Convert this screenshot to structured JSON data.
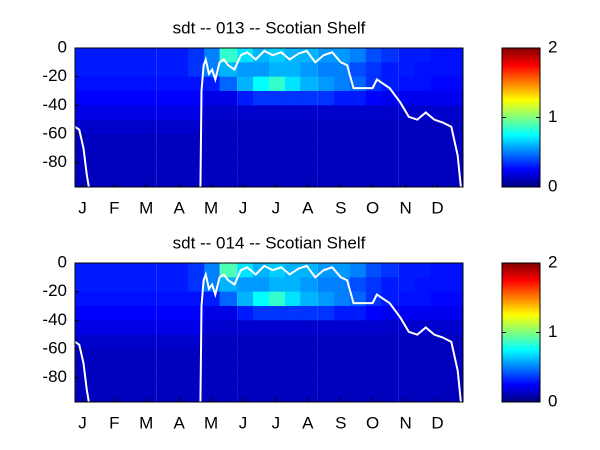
{
  "chart_data": [
    {
      "type": "heatmap",
      "title": "sdt -- 013 -- Scotian Shelf",
      "colormap": "jet",
      "xlim": [
        0,
        365
      ],
      "xticks": [
        {
          "value": 7,
          "label": "J"
        },
        {
          "value": 37,
          "label": "F"
        },
        {
          "value": 67,
          "label": "M"
        },
        {
          "value": 98,
          "label": "A"
        },
        {
          "value": 128,
          "label": "M"
        },
        {
          "value": 158,
          "label": "J"
        },
        {
          "value": 189,
          "label": "J"
        },
        {
          "value": 219,
          "label": "A"
        },
        {
          "value": 250,
          "label": "S"
        },
        {
          "value": 280,
          "label": "O"
        },
        {
          "value": 311,
          "label": "N"
        },
        {
          "value": 341,
          "label": "D"
        }
      ],
      "ylim": [
        -97,
        0
      ],
      "yticks": [
        0,
        -20,
        -40,
        -60,
        -80
      ],
      "clim": [
        0,
        2
      ],
      "cticks": [
        0,
        1,
        2
      ],
      "x": [
        8,
        23,
        38,
        53,
        68,
        84,
        99,
        114,
        129,
        144,
        160,
        175,
        190,
        205,
        220,
        236,
        251,
        266,
        281,
        296,
        312,
        327,
        342,
        357
      ],
      "y": [
        -5,
        -15,
        -25,
        -35,
        -45,
        -55,
        -65,
        -75,
        -85,
        -95
      ],
      "z": [
        [
          0.3,
          0.3,
          0.3,
          0.3,
          0.3,
          0.3,
          0.3,
          0.35,
          0.5,
          0.85,
          0.7,
          0.6,
          0.65,
          0.6,
          0.6,
          0.55,
          0.55,
          0.5,
          0.4,
          0.35,
          0.3,
          0.3,
          0.28,
          0.28
        ],
        [
          0.3,
          0.3,
          0.3,
          0.3,
          0.3,
          0.3,
          0.3,
          0.35,
          0.5,
          0.6,
          0.55,
          0.55,
          0.6,
          0.6,
          0.55,
          0.5,
          0.5,
          0.4,
          0.35,
          0.3,
          0.3,
          0.28,
          0.28,
          0.28
        ],
        [
          0.28,
          0.28,
          0.28,
          0.28,
          0.28,
          0.28,
          0.28,
          0.28,
          0.3,
          0.45,
          0.6,
          0.75,
          0.85,
          0.7,
          0.6,
          0.55,
          0.5,
          0.45,
          0.35,
          0.3,
          0.28,
          0.28,
          0.26,
          0.26
        ],
        [
          0.25,
          0.25,
          0.25,
          0.25,
          0.25,
          0.25,
          0.25,
          0.25,
          0.2,
          0.2,
          0.3,
          0.35,
          0.35,
          0.35,
          0.35,
          0.35,
          0.3,
          0.3,
          0.25,
          0.22,
          0.22,
          0.22,
          0.22,
          0.22
        ],
        [
          0.2,
          0.2,
          0.2,
          0.2,
          0.2,
          0.2,
          0.2,
          0.2,
          0.15,
          0.15,
          0.15,
          0.15,
          0.15,
          0.15,
          0.15,
          0.15,
          0.15,
          0.15,
          0.15,
          0.15,
          0.15,
          0.15,
          0.15,
          0.15
        ],
        [
          0.15,
          0.15,
          0.15,
          0.15,
          0.15,
          0.15,
          0.15,
          0.15,
          0.12,
          0.12,
          0.12,
          0.12,
          0.12,
          0.12,
          0.12,
          0.12,
          0.12,
          0.12,
          0.12,
          0.12,
          0.12,
          0.12,
          0.12,
          0.12
        ],
        [
          0.12,
          0.12,
          0.12,
          0.12,
          0.12,
          0.12,
          0.12,
          0.12,
          0.12,
          0.12,
          0.12,
          0.12,
          0.12,
          0.12,
          0.12,
          0.12,
          0.12,
          0.12,
          0.12,
          0.12,
          0.12,
          0.12,
          0.12,
          0.12
        ],
        [
          0.12,
          0.12,
          0.12,
          0.12,
          0.12,
          0.12,
          0.12,
          0.12,
          0.12,
          0.12,
          0.12,
          0.12,
          0.12,
          0.12,
          0.12,
          0.12,
          0.12,
          0.12,
          0.12,
          0.12,
          0.12,
          0.12,
          0.12,
          0.12
        ],
        [
          0.12,
          0.12,
          0.12,
          0.12,
          0.12,
          0.12,
          0.12,
          0.12,
          0.12,
          0.12,
          0.12,
          0.12,
          0.12,
          0.12,
          0.12,
          0.12,
          0.12,
          0.12,
          0.12,
          0.12,
          0.12,
          0.12,
          0.12,
          0.12
        ],
        [
          0.12,
          0.12,
          0.12,
          0.12,
          0.12,
          0.12,
          0.12,
          0.12,
          0.12,
          0.12,
          0.12,
          0.12,
          0.12,
          0.12,
          0.12,
          0.12,
          0.12,
          0.12,
          0.12,
          0.12,
          0.12,
          0.12,
          0.12,
          0.12
        ]
      ],
      "line": {
        "color": "#ffffff",
        "x": [
          0,
          4,
          8,
          11,
          13,
          60,
          118,
          119,
          121,
          123,
          126,
          129,
          132,
          136,
          140,
          144,
          150,
          156,
          162,
          170,
          178,
          186,
          194,
          202,
          210,
          218,
          226,
          234,
          242,
          250,
          256,
          262,
          280,
          284,
          296,
          300,
          306,
          314,
          322,
          330,
          338,
          346,
          354,
          360,
          363
        ],
        "y": [
          -55,
          -57,
          -70,
          -88,
          -97,
          null,
          -97,
          -30,
          -12,
          -8,
          -18,
          -15,
          -22,
          -10,
          -8,
          -12,
          -15,
          -5,
          -3,
          -8,
          -2,
          -5,
          -3,
          -8,
          -4,
          -2,
          -10,
          -5,
          -3,
          -10,
          -12,
          -28,
          -28,
          -22,
          -28,
          -32,
          -38,
          -48,
          -50,
          -45,
          -50,
          -52,
          -55,
          -75,
          -97
        ]
      }
    },
    {
      "type": "heatmap",
      "title": "sdt -- 014 -- Scotian Shelf",
      "colormap": "jet",
      "xlim": [
        0,
        365
      ],
      "xticks": [
        {
          "value": 7,
          "label": "J"
        },
        {
          "value": 37,
          "label": "F"
        },
        {
          "value": 67,
          "label": "M"
        },
        {
          "value": 98,
          "label": "A"
        },
        {
          "value": 128,
          "label": "M"
        },
        {
          "value": 158,
          "label": "J"
        },
        {
          "value": 189,
          "label": "J"
        },
        {
          "value": 219,
          "label": "A"
        },
        {
          "value": 250,
          "label": "S"
        },
        {
          "value": 280,
          "label": "O"
        },
        {
          "value": 311,
          "label": "N"
        },
        {
          "value": 341,
          "label": "D"
        }
      ],
      "ylim": [
        -97,
        0
      ],
      "yticks": [
        0,
        -20,
        -40,
        -60,
        -80
      ],
      "clim": [
        0,
        2
      ],
      "cticks": [
        0,
        1,
        2
      ],
      "x": [
        8,
        23,
        38,
        53,
        68,
        84,
        99,
        114,
        129,
        144,
        160,
        175,
        190,
        205,
        220,
        236,
        251,
        266,
        281,
        296,
        312,
        327,
        342,
        357
      ],
      "y": [
        -5,
        -15,
        -25,
        -35,
        -45,
        -55,
        -65,
        -75,
        -85,
        -95
      ],
      "z": [
        [
          0.3,
          0.3,
          0.3,
          0.3,
          0.3,
          0.3,
          0.3,
          0.35,
          0.5,
          0.9,
          0.7,
          0.6,
          0.65,
          0.6,
          0.6,
          0.55,
          0.55,
          0.5,
          0.4,
          0.35,
          0.3,
          0.3,
          0.28,
          0.28
        ],
        [
          0.3,
          0.3,
          0.3,
          0.3,
          0.3,
          0.3,
          0.3,
          0.35,
          0.5,
          0.6,
          0.55,
          0.55,
          0.6,
          0.6,
          0.55,
          0.5,
          0.5,
          0.4,
          0.35,
          0.3,
          0.3,
          0.28,
          0.28,
          0.28
        ],
        [
          0.28,
          0.28,
          0.28,
          0.28,
          0.28,
          0.28,
          0.28,
          0.28,
          0.3,
          0.45,
          0.6,
          0.75,
          0.85,
          0.7,
          0.6,
          0.55,
          0.5,
          0.45,
          0.35,
          0.3,
          0.28,
          0.28,
          0.26,
          0.26
        ],
        [
          0.25,
          0.25,
          0.25,
          0.25,
          0.25,
          0.25,
          0.25,
          0.25,
          0.2,
          0.2,
          0.3,
          0.35,
          0.35,
          0.35,
          0.35,
          0.35,
          0.3,
          0.3,
          0.25,
          0.22,
          0.22,
          0.22,
          0.22,
          0.22
        ],
        [
          0.2,
          0.2,
          0.2,
          0.2,
          0.2,
          0.2,
          0.2,
          0.2,
          0.15,
          0.15,
          0.15,
          0.15,
          0.15,
          0.15,
          0.15,
          0.15,
          0.15,
          0.15,
          0.15,
          0.15,
          0.15,
          0.15,
          0.15,
          0.15
        ],
        [
          0.15,
          0.15,
          0.15,
          0.15,
          0.15,
          0.15,
          0.15,
          0.15,
          0.12,
          0.12,
          0.12,
          0.12,
          0.12,
          0.12,
          0.12,
          0.12,
          0.12,
          0.12,
          0.12,
          0.12,
          0.12,
          0.12,
          0.12,
          0.12
        ],
        [
          0.12,
          0.12,
          0.12,
          0.12,
          0.12,
          0.12,
          0.12,
          0.12,
          0.12,
          0.12,
          0.12,
          0.12,
          0.12,
          0.12,
          0.12,
          0.12,
          0.12,
          0.12,
          0.12,
          0.12,
          0.12,
          0.12,
          0.12,
          0.12
        ],
        [
          0.12,
          0.12,
          0.12,
          0.12,
          0.12,
          0.12,
          0.12,
          0.12,
          0.12,
          0.12,
          0.12,
          0.12,
          0.12,
          0.12,
          0.12,
          0.12,
          0.12,
          0.12,
          0.12,
          0.12,
          0.12,
          0.12,
          0.12,
          0.12
        ],
        [
          0.12,
          0.12,
          0.12,
          0.12,
          0.12,
          0.12,
          0.12,
          0.12,
          0.12,
          0.12,
          0.12,
          0.12,
          0.12,
          0.12,
          0.12,
          0.12,
          0.12,
          0.12,
          0.12,
          0.12,
          0.12,
          0.12,
          0.12,
          0.12
        ],
        [
          0.12,
          0.12,
          0.12,
          0.12,
          0.12,
          0.12,
          0.12,
          0.12,
          0.12,
          0.12,
          0.12,
          0.12,
          0.12,
          0.12,
          0.12,
          0.12,
          0.12,
          0.12,
          0.12,
          0.12,
          0.12,
          0.12,
          0.12,
          0.12
        ]
      ],
      "line": {
        "color": "#ffffff",
        "x": [
          0,
          4,
          8,
          11,
          13,
          60,
          118,
          119,
          121,
          123,
          126,
          129,
          132,
          136,
          140,
          144,
          150,
          156,
          162,
          170,
          178,
          186,
          194,
          202,
          210,
          218,
          226,
          234,
          242,
          250,
          256,
          262,
          280,
          284,
          296,
          300,
          306,
          314,
          322,
          330,
          338,
          346,
          354,
          360,
          363
        ],
        "y": [
          -55,
          -57,
          -70,
          -88,
          -97,
          null,
          -97,
          -30,
          -12,
          -8,
          -18,
          -15,
          -22,
          -10,
          -8,
          -12,
          -15,
          -5,
          -3,
          -8,
          -2,
          -5,
          -3,
          -8,
          -4,
          -2,
          -10,
          -5,
          -3,
          -10,
          -12,
          -28,
          -28,
          -22,
          -28,
          -32,
          -38,
          -48,
          -50,
          -45,
          -50,
          -52,
          -55,
          -75,
          -97
        ]
      }
    }
  ]
}
